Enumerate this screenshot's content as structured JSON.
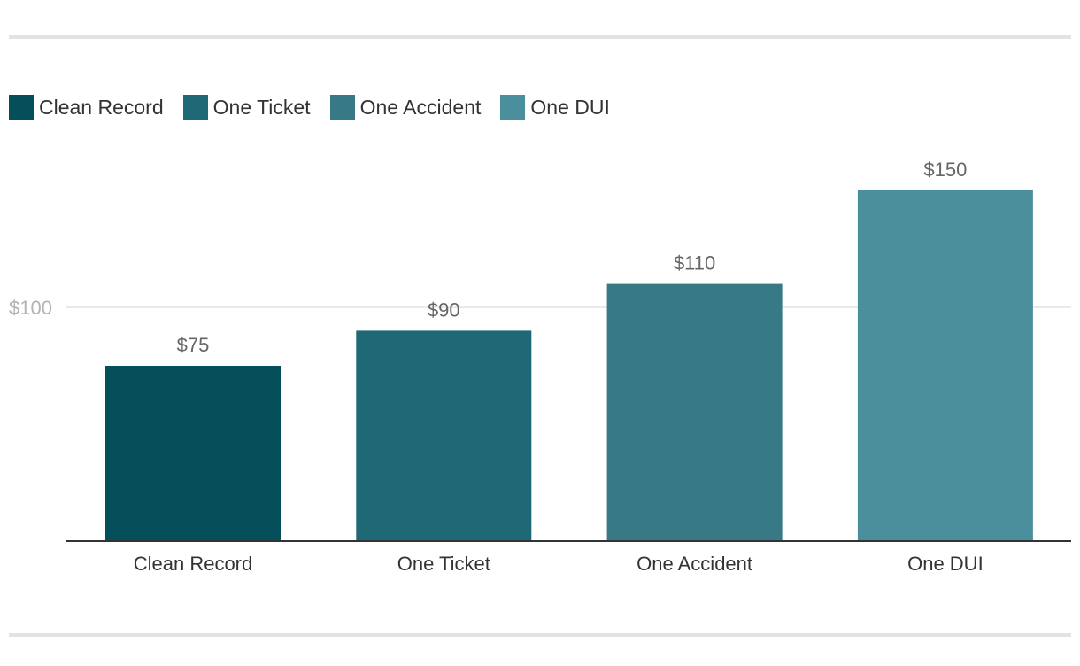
{
  "chart_data": {
    "type": "bar",
    "categories": [
      "Clean Record",
      "One Ticket",
      "One Accident",
      "One DUI"
    ],
    "values": [
      75,
      90,
      110,
      150
    ],
    "data_labels": [
      "$75",
      "$90",
      "$110",
      "$150"
    ],
    "colors": [
      "#044f5a",
      "#1f6875",
      "#377984",
      "#4b8f9c"
    ],
    "legend": [
      "Clean Record",
      "One Ticket",
      "One Accident",
      "One DUI"
    ],
    "legend_position": "top-left",
    "y_ticks": [
      {
        "value": 100,
        "label": "$100"
      }
    ],
    "ylim": [
      0,
      160
    ],
    "grid": true,
    "title": "",
    "xlabel": "",
    "ylabel": ""
  }
}
